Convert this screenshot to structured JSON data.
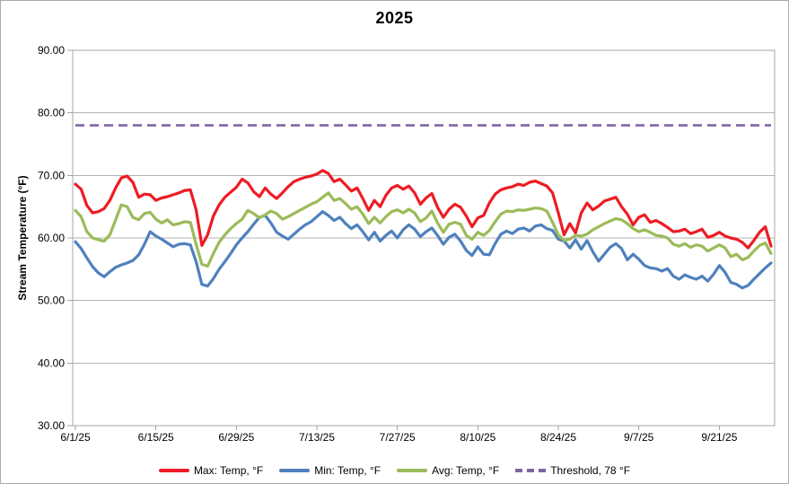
{
  "chart_data": {
    "type": "line",
    "title": "2025",
    "xlabel": "",
    "ylabel": "Stream Temperature (°F)",
    "ylim": [
      30,
      90
    ],
    "ytick_labels": [
      "30.00",
      "40.00",
      "50.00",
      "60.00",
      "70.00",
      "80.00",
      "90.00"
    ],
    "xtick_labels": [
      "6/1/25",
      "6/15/25",
      "6/29/25",
      "7/13/25",
      "7/27/25",
      "8/10/25",
      "8/24/25",
      "9/7/25",
      "9/21/25"
    ],
    "xtick_interval_days": 14,
    "x_total_days": 122,
    "grid": "horizontal-only",
    "legend_position": "bottom",
    "axis_color": "#A6A6A6",
    "gridline_color": "#B3B3B3",
    "series": [
      {
        "name": "Max: Temp, °F",
        "color": "#ED1C24",
        "style": "solid",
        "values": [
          68.6,
          67.8,
          65.2,
          64.0,
          64.2,
          64.7,
          66.0,
          68.0,
          69.6,
          69.9,
          68.9,
          66.5,
          67.0,
          66.9,
          66.0,
          66.4,
          66.6,
          66.9,
          67.2,
          67.6,
          67.7,
          64.5,
          58.8,
          60.5,
          63.5,
          65.3,
          66.5,
          67.3,
          68.1,
          69.4,
          68.8,
          67.4,
          66.6,
          68.0,
          67.0,
          66.3,
          67.2,
          68.2,
          69.0,
          69.4,
          69.7,
          69.9,
          70.2,
          70.8,
          70.3,
          69.0,
          69.4,
          68.5,
          67.5,
          68.0,
          66.3,
          64.4,
          66.0,
          65.0,
          66.8,
          68.0,
          68.4,
          67.8,
          68.3,
          67.2,
          65.4,
          66.4,
          67.1,
          64.9,
          63.3,
          64.6,
          65.4,
          64.9,
          63.5,
          61.8,
          63.2,
          63.6,
          65.6,
          67.0,
          67.7,
          68.0,
          68.2,
          68.6,
          68.4,
          68.9,
          69.1,
          68.7,
          68.3,
          67.2,
          64.0,
          60.5,
          62.3,
          60.8,
          64.0,
          65.6,
          64.5,
          65.1,
          65.9,
          66.2,
          66.5,
          65.0,
          63.8,
          62.1,
          63.3,
          63.7,
          62.5,
          62.8,
          62.3,
          61.7,
          61.0,
          61.1,
          61.4,
          60.7,
          61.0,
          61.4,
          60.1,
          60.4,
          60.9,
          60.3,
          60.0,
          59.8,
          59.3,
          58.4,
          59.6,
          60.9,
          61.8,
          58.7
        ]
      },
      {
        "name": "Min: Temp, °F",
        "color": "#4F81BD",
        "style": "solid",
        "values": [
          59.4,
          58.3,
          56.8,
          55.4,
          54.4,
          53.8,
          54.6,
          55.3,
          55.7,
          56.0,
          56.4,
          57.3,
          59.0,
          61.0,
          60.3,
          59.8,
          59.2,
          58.6,
          59.0,
          59.1,
          58.9,
          56.2,
          52.6,
          52.3,
          53.5,
          55.0,
          56.2,
          57.5,
          58.9,
          60.0,
          61.0,
          62.2,
          63.3,
          63.6,
          62.4,
          60.9,
          60.3,
          59.8,
          60.6,
          61.4,
          62.1,
          62.6,
          63.4,
          64.2,
          63.6,
          62.8,
          63.3,
          62.3,
          61.5,
          62.1,
          61.0,
          59.7,
          60.9,
          59.5,
          60.4,
          61.1,
          60.0,
          61.3,
          62.1,
          61.4,
          60.2,
          61.0,
          61.6,
          60.4,
          59.0,
          60.1,
          60.6,
          59.5,
          58.0,
          57.2,
          58.6,
          57.4,
          57.3,
          59.1,
          60.6,
          61.1,
          60.7,
          61.4,
          61.6,
          61.1,
          61.9,
          62.1,
          61.5,
          61.2,
          59.8,
          59.5,
          58.4,
          59.7,
          58.2,
          59.6,
          57.8,
          56.3,
          57.4,
          58.5,
          59.1,
          58.3,
          56.5,
          57.4,
          56.6,
          55.6,
          55.2,
          55.1,
          54.7,
          55.1,
          53.9,
          53.4,
          54.1,
          53.7,
          53.4,
          53.9,
          53.1,
          54.2,
          55.6,
          54.5,
          52.9,
          52.6,
          52.0,
          52.4,
          53.4,
          54.3,
          55.2,
          56.0
        ]
      },
      {
        "name": "Avg: Temp, °F",
        "color": "#9BBB59",
        "style": "solid",
        "values": [
          64.4,
          63.4,
          61.0,
          60.0,
          59.7,
          59.5,
          60.5,
          62.9,
          65.3,
          65.0,
          63.3,
          62.9,
          63.9,
          64.1,
          63.0,
          62.4,
          62.9,
          62.1,
          62.3,
          62.6,
          62.5,
          59.0,
          55.8,
          55.5,
          57.5,
          59.3,
          60.5,
          61.5,
          62.3,
          63.0,
          64.4,
          63.9,
          63.2,
          63.7,
          64.3,
          63.9,
          63.0,
          63.4,
          63.9,
          64.4,
          64.9,
          65.4,
          65.8,
          66.5,
          67.2,
          66.0,
          66.3,
          65.5,
          64.6,
          65.0,
          63.8,
          62.3,
          63.3,
          62.4,
          63.4,
          64.2,
          64.5,
          64.0,
          64.6,
          64.0,
          62.6,
          63.2,
          64.3,
          62.4,
          60.9,
          62.2,
          62.5,
          62.2,
          60.4,
          59.8,
          60.9,
          60.4,
          61.2,
          62.6,
          63.8,
          64.3,
          64.2,
          64.5,
          64.4,
          64.6,
          64.8,
          64.7,
          64.3,
          62.5,
          60.5,
          59.6,
          59.8,
          60.4,
          60.3,
          60.6,
          61.3,
          61.8,
          62.3,
          62.7,
          63.1,
          62.9,
          62.3,
          61.5,
          61.0,
          61.3,
          60.9,
          60.4,
          60.3,
          60.0,
          59.0,
          58.7,
          59.1,
          58.5,
          58.9,
          58.7,
          57.9,
          58.4,
          58.9,
          58.4,
          57.0,
          57.4,
          56.5,
          56.9,
          57.9,
          58.8,
          59.2,
          57.5
        ]
      },
      {
        "name": "Threshold, 78 °F",
        "color": "#8064A2",
        "style": "dashed",
        "constant": 78
      }
    ]
  }
}
